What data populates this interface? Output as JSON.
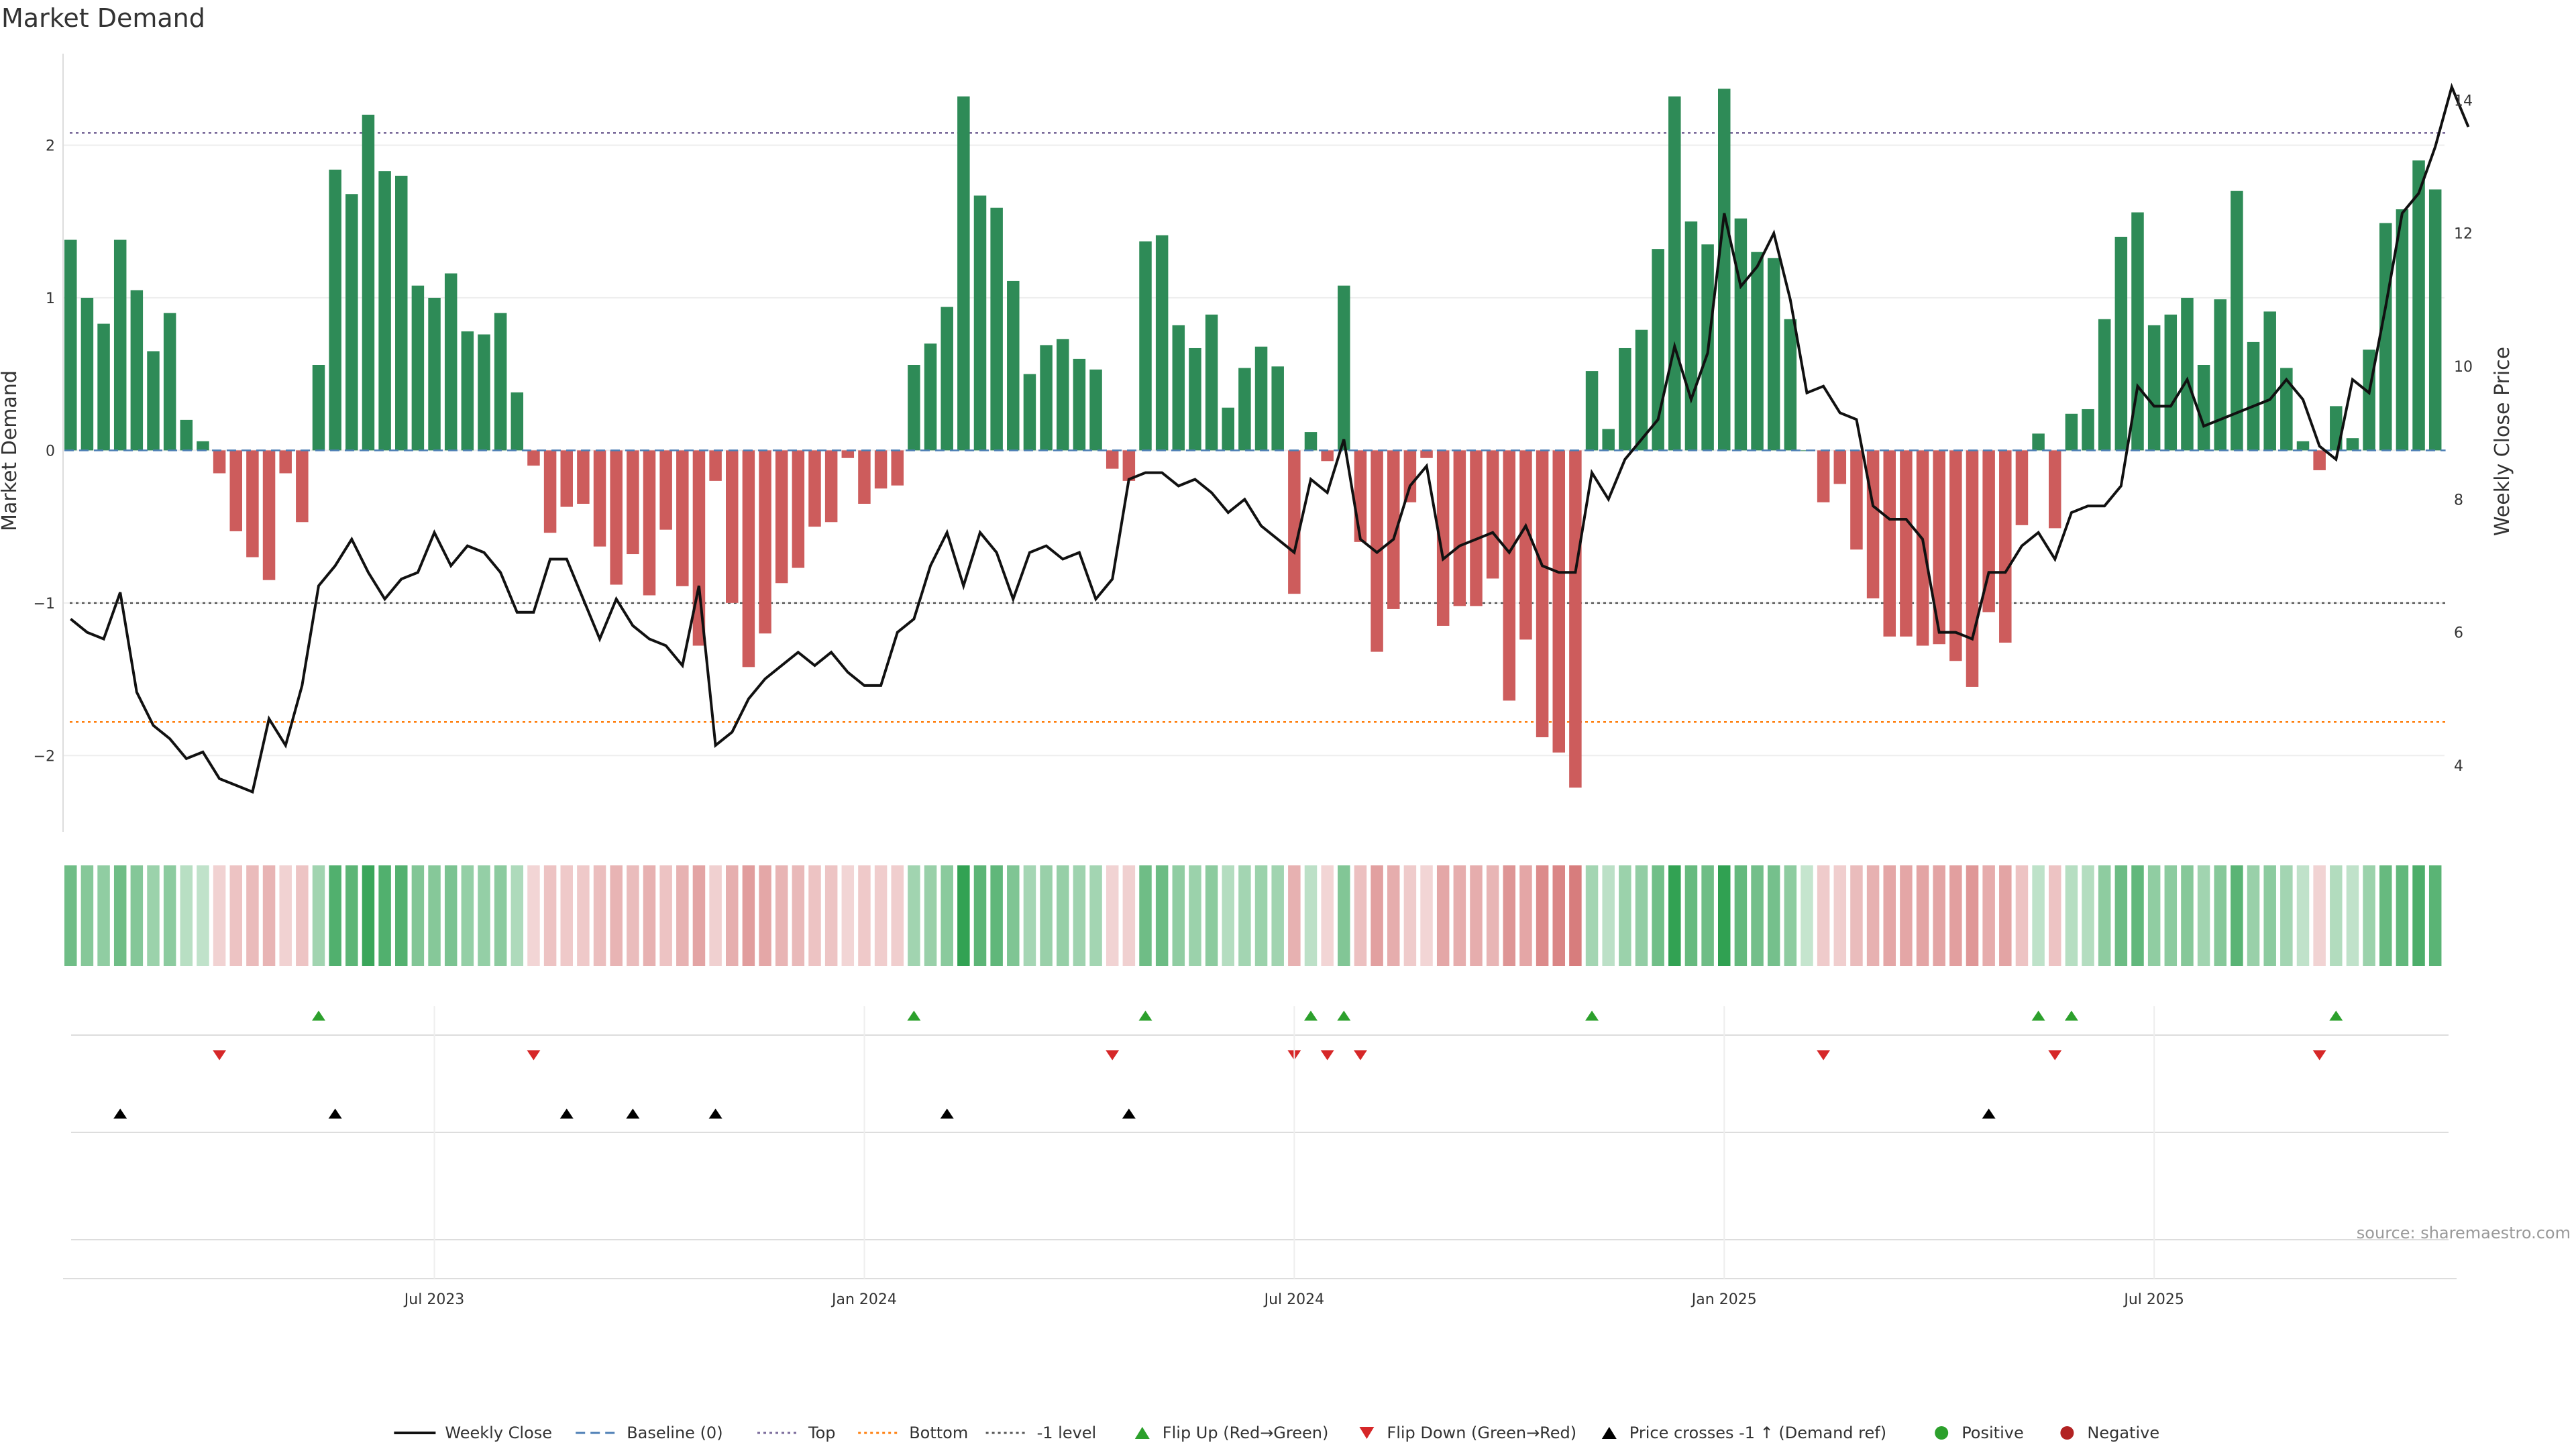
{
  "chart_data": {
    "type": "bar",
    "title": "Market Demand",
    "ylabel_left": "Market Demand",
    "ylabel_right": "Weekly Close Price",
    "ylim_left": [
      -2.5,
      2.6
    ],
    "ylim_right": [
      3.0,
      14.7
    ],
    "yticks_left": [
      -2,
      -1,
      0,
      1,
      2
    ],
    "yticks_right": [
      4,
      6,
      8,
      10,
      12,
      14
    ],
    "date_ticks": [
      {
        "label": "Jul 2023",
        "week": 22
      },
      {
        "label": "Jan 2024",
        "week": 48
      },
      {
        "label": "Jul 2024",
        "week": 74
      },
      {
        "label": "Jan 2025",
        "week": 100
      },
      {
        "label": "Jul 2025",
        "week": 126
      }
    ],
    "reference_lines": {
      "top": 2.08,
      "bottom": -1.78,
      "minus_one": -1.0,
      "baseline": 0
    },
    "demand": [
      1.38,
      1.0,
      0.83,
      1.38,
      1.05,
      0.65,
      0.9,
      0.2,
      0.06,
      -0.15,
      -0.53,
      -0.7,
      -0.85,
      -0.15,
      -0.47,
      0.56,
      1.84,
      1.68,
      2.2,
      1.83,
      1.8,
      1.08,
      1.0,
      1.16,
      0.78,
      0.76,
      0.9,
      0.38,
      -0.1,
      -0.54,
      -0.37,
      -0.35,
      -0.63,
      -0.88,
      -0.68,
      -0.95,
      -0.52,
      -0.89,
      -1.28,
      -0.2,
      -1.0,
      -1.42,
      -1.2,
      -0.87,
      -0.77,
      -0.5,
      -0.47,
      -0.05,
      -0.35,
      -0.25,
      -0.23,
      0.56,
      0.7,
      0.94,
      2.32,
      1.67,
      1.59,
      1.11,
      0.5,
      0.69,
      0.73,
      0.6,
      0.53,
      -0.12,
      -0.2,
      1.37,
      1.41,
      0.82,
      0.67,
      0.89,
      0.28,
      0.54,
      0.68,
      0.55,
      -0.94,
      0.12,
      -0.07,
      1.08,
      -0.6,
      -1.32,
      -1.04,
      -0.34,
      -0.05,
      -1.15,
      -1.02,
      -1.02,
      -0.84,
      -1.64,
      -1.24,
      -1.88,
      -1.98,
      -2.21,
      0.52,
      0.14,
      0.67,
      0.79,
      1.32,
      2.32,
      1.5,
      1.35,
      2.37,
      1.52,
      1.3,
      1.26,
      0.86,
      0.0,
      -0.34,
      -0.22,
      -0.65,
      -0.97,
      -1.22,
      -1.22,
      -1.28,
      -1.27,
      -1.38,
      -1.55,
      -1.06,
      -1.26,
      -0.49,
      0.11,
      -0.51,
      0.24,
      0.27,
      0.86,
      1.4,
      1.56,
      0.82,
      0.89,
      1.0,
      0.56,
      0.99,
      1.7,
      0.71,
      0.91,
      0.54,
      0.06,
      -0.13,
      0.29,
      0.08,
      0.66,
      1.49,
      1.58,
      1.9,
      1.71
    ],
    "weekly_close": [
      6.2,
      6.0,
      5.9,
      6.6,
      5.1,
      4.6,
      4.4,
      4.1,
      4.2,
      3.8,
      3.7,
      3.6,
      4.7,
      4.3,
      5.2,
      6.7,
      7.0,
      7.4,
      6.9,
      6.5,
      6.8,
      6.9,
      7.5,
      7.0,
      7.3,
      7.2,
      6.9,
      6.3,
      6.3,
      7.1,
      7.1,
      6.5,
      5.9,
      6.5,
      6.1,
      5.9,
      5.8,
      5.5,
      6.7,
      4.3,
      4.5,
      5.0,
      5.3,
      5.5,
      5.7,
      5.5,
      5.7,
      5.4,
      5.2,
      5.2,
      6.0,
      6.2,
      7.0,
      7.5,
      6.7,
      7.5,
      7.2,
      6.5,
      7.2,
      7.3,
      7.1,
      7.2,
      6.5,
      6.8,
      8.3,
      8.4,
      8.4,
      8.2,
      8.3,
      8.1,
      7.8,
      8.0,
      7.6,
      7.4,
      7.2,
      8.3,
      8.1,
      8.9,
      7.4,
      7.2,
      7.4,
      8.2,
      8.5,
      7.1,
      7.3,
      7.4,
      7.5,
      7.2,
      7.6,
      7.0,
      6.9,
      6.9,
      8.4,
      8.0,
      8.6,
      8.9,
      9.2,
      10.3,
      9.5,
      10.2,
      12.3,
      11.2,
      11.5,
      12.0,
      11.0,
      9.6,
      9.7,
      9.3,
      9.2,
      7.9,
      7.7,
      7.7,
      7.4,
      6.0,
      6.0,
      5.9,
      6.9,
      6.9,
      7.3,
      7.5,
      7.1,
      7.8,
      7.9,
      7.9,
      8.2,
      9.7,
      9.4,
      9.4,
      9.8,
      9.1,
      9.2,
      9.3,
      9.4,
      9.5,
      9.8,
      9.5,
      8.8,
      8.6,
      9.8,
      9.6,
      10.9,
      12.3,
      12.6,
      13.3,
      14.2,
      13.6
    ],
    "flip_up_weeks": [
      15,
      51,
      65,
      75,
      77,
      92,
      119,
      121,
      137
    ],
    "flip_down_weeks": [
      9,
      28,
      63,
      74,
      76,
      78,
      106,
      120,
      136
    ],
    "price_cross_weeks": [
      3,
      16,
      30,
      34,
      39,
      53,
      64,
      116
    ],
    "legend": [
      {
        "label": "Weekly Close",
        "kind": "line-solid",
        "color": "#111111"
      },
      {
        "label": "Baseline (0)",
        "kind": "line-dash",
        "color": "#4d7fb5"
      },
      {
        "label": "Top",
        "kind": "line-dot",
        "color": "#7a6a9a"
      },
      {
        "label": "Bottom",
        "kind": "line-dot",
        "color": "#ff7f0e"
      },
      {
        "label": "-1 level",
        "kind": "line-dot",
        "color": "#555555"
      },
      {
        "label": "Flip Up (Red→Green)",
        "kind": "tri-up",
        "color": "#2ca02c"
      },
      {
        "label": "Flip Down (Green→Red)",
        "kind": "tri-down",
        "color": "#d62728"
      },
      {
        "label": "Price crosses -1 ↑ (Demand ref)",
        "kind": "tri-up",
        "color": "#000000"
      },
      {
        "label": "Positive",
        "kind": "dot",
        "color": "#2ca02c"
      },
      {
        "label": "Negative",
        "kind": "dot",
        "color": "#b22222"
      }
    ],
    "source": "source: sharemaestro.com"
  },
  "colors": {
    "positive_bar": "#2e8b57",
    "negative_bar": "#cd5c5c",
    "price_line": "#111111",
    "grid": "#eeeeee"
  }
}
